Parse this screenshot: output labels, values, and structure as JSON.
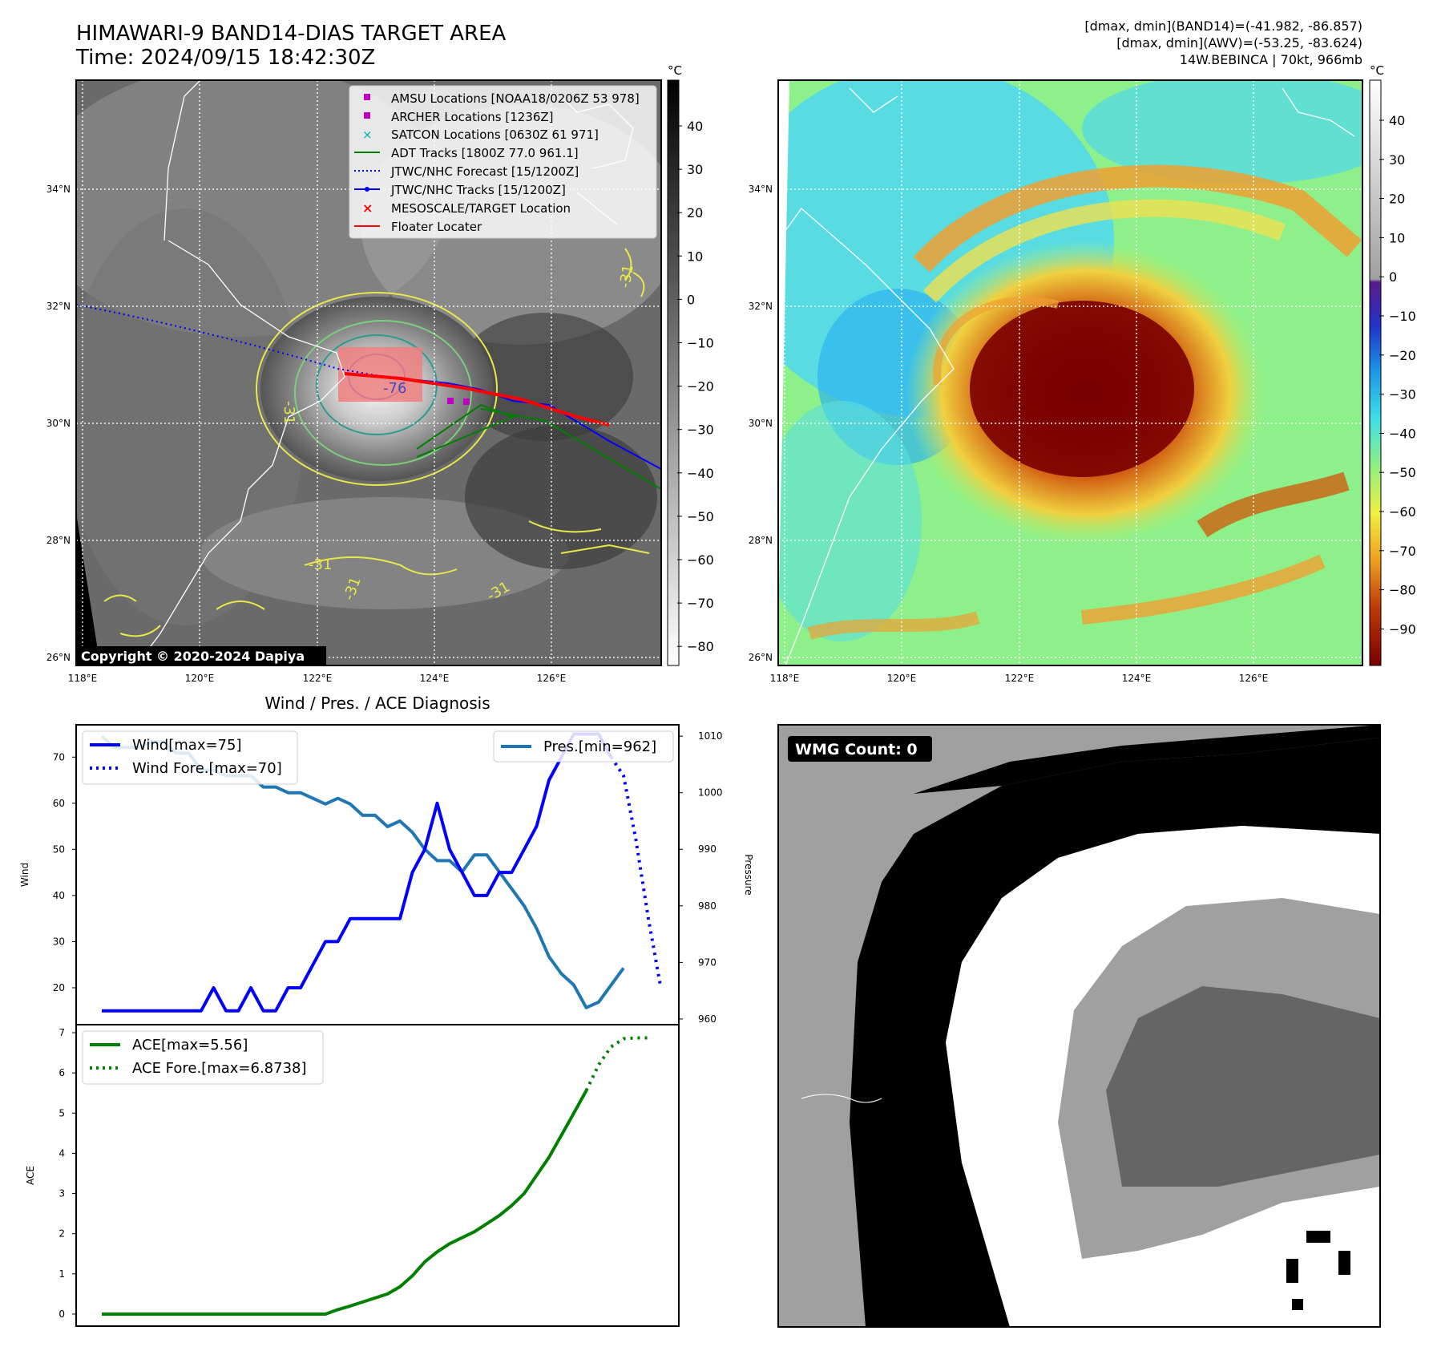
{
  "header": {
    "title": "HIMAWARI-9 BAND14-DIAS TARGET AREA",
    "time": "Time: 2024/09/15 18:42:30Z",
    "info_line1": "[dmax, dmin](BAND14)=(-41.982, -86.857)",
    "info_line2": "[dmax, dmin](AWV)=(-53.25, -83.624)",
    "info_line3": "14W.BEBINCA | 70kt, 966mb"
  },
  "map": {
    "lat_labels": [
      "34°N",
      "32°N",
      "30°N",
      "28°N",
      "26°N"
    ],
    "lon_labels": [
      "118°E",
      "120°E",
      "122°E",
      "124°E",
      "126°E"
    ],
    "copyright": "Copyright © 2020-2024 Dapiya",
    "contour_labels": [
      "-31",
      "-76",
      "-31",
      "-31",
      "-31",
      "-31"
    ],
    "legend": [
      {
        "label": "AMSU Locations [NOAA18/0206Z 53 978]",
        "color": "#c000c0",
        "marker": "square"
      },
      {
        "label": "ARCHER Locations [1236Z]",
        "color": "#c000c0",
        "marker": "square"
      },
      {
        "label": "SATCON Locations [0630Z 61 971]",
        "color": "#00b0b0",
        "marker": "x"
      },
      {
        "label": "ADT Tracks [1800Z 77.0 961.1]",
        "color": "#008000",
        "marker": "line"
      },
      {
        "label": "JTWC/NHC Forecast [15/1200Z]",
        "color": "#0000ff",
        "marker": "dotted"
      },
      {
        "label": "JTWC/NHC Tracks [15/1200Z]",
        "color": "#0000ff",
        "marker": "line-dot"
      },
      {
        "label": "MESOSCALE/TARGET Location",
        "color": "#ff0000",
        "marker": "x"
      },
      {
        "label": "Floater Locater",
        "color": "#ff0000",
        "marker": "line"
      }
    ],
    "colorbar_gray": {
      "unit": "°C",
      "ticks": [
        "40",
        "30",
        "20",
        "10",
        "0",
        "−10",
        "−20",
        "−30",
        "−40",
        "−50",
        "−60",
        "−70",
        "−80"
      ]
    },
    "colorbar_awv": {
      "unit": "°C",
      "ticks": [
        "40",
        "30",
        "20",
        "10",
        "0",
        "−10",
        "−20",
        "−30",
        "−40",
        "−50",
        "−60",
        "−70",
        "−80",
        "−90"
      ]
    }
  },
  "wmg": {
    "label": "WMG Count: 0"
  },
  "chart_data": [
    {
      "type": "line",
      "title": "Wind / Pres. / ACE Diagnosis",
      "ylabel": "Wind",
      "y2label": "Pressure",
      "ylim": [
        12,
        77
      ],
      "y2lim": [
        959,
        1012
      ],
      "yticks": [
        "70",
        "60",
        "50",
        "40",
        "30",
        "20"
      ],
      "y2ticks": [
        "1010",
        "1000",
        "990",
        "980",
        "970",
        "960"
      ],
      "x": [
        0,
        1,
        2,
        3,
        4,
        5,
        6,
        7,
        8,
        9,
        10,
        11,
        12,
        13,
        14,
        15,
        16,
        17,
        18,
        19,
        20,
        21,
        22,
        23,
        24,
        25,
        26,
        27,
        28,
        29,
        30,
        31,
        32,
        33,
        34,
        35,
        36,
        37,
        38,
        39,
        40,
        41,
        42,
        43,
        44
      ],
      "series": [
        {
          "name": "Wind[max=75]",
          "color": "#0000ff",
          "style": "solid",
          "x": [
            0,
            1,
            2,
            3,
            4,
            5,
            6,
            7,
            8,
            9,
            10,
            11,
            12,
            13,
            14,
            15,
            16,
            17,
            18,
            19,
            20,
            21,
            22,
            23,
            24,
            25,
            26,
            27,
            28,
            29,
            30,
            31,
            32,
            33,
            34,
            35,
            36,
            37,
            38,
            39,
            40,
            41
          ],
          "values": [
            15,
            15,
            15,
            15,
            15,
            15,
            15,
            15,
            15,
            20,
            15,
            15,
            20,
            15,
            15,
            20,
            20,
            25,
            30,
            30,
            35,
            35,
            35,
            35,
            35,
            45,
            50,
            60,
            50,
            45,
            40,
            40,
            45,
            45,
            50,
            55,
            65,
            70,
            75,
            75,
            75,
            70
          ]
        },
        {
          "name": "Wind Fore.[max=70]",
          "color": "#0000ff",
          "style": "dotted",
          "x": [
            41,
            42,
            43,
            44,
            45
          ],
          "values": [
            70,
            66,
            52,
            35,
            20
          ]
        },
        {
          "name": "Pres.[min=962]",
          "color": "#1f77b4",
          "style": "solid",
          "axis": "right",
          "x": [
            0,
            1,
            2,
            3,
            4,
            5,
            6,
            7,
            8,
            9,
            10,
            11,
            12,
            13,
            14,
            15,
            16,
            17,
            18,
            19,
            20,
            21,
            22,
            23,
            24,
            25,
            26,
            27,
            28,
            29,
            30,
            31,
            32,
            33,
            34,
            35,
            36,
            37,
            38,
            39,
            40,
            41,
            42
          ],
          "values": [
            1010,
            1008,
            1008,
            1008,
            1009,
            1009,
            1007,
            1007,
            1004,
            1004,
            1003,
            1003,
            1003,
            1001,
            1001,
            1000,
            1000,
            999,
            998,
            999,
            998,
            996,
            996,
            994,
            995,
            993,
            990,
            988,
            988,
            986,
            989,
            989,
            986,
            983,
            980,
            976,
            971,
            968,
            966,
            962,
            963,
            966,
            969
          ]
        }
      ]
    },
    {
      "type": "line",
      "ylabel": "ACE",
      "ylim": [
        -0.3,
        7.2
      ],
      "yticks": [
        "7",
        "6",
        "5",
        "4",
        "3",
        "2",
        "1",
        "0"
      ],
      "series": [
        {
          "name": "ACE[max=5.56]",
          "color": "#008000",
          "style": "solid",
          "x": [
            0,
            3,
            6,
            9,
            12,
            15,
            17,
            18,
            19,
            20,
            21,
            22,
            23,
            24,
            25,
            26,
            27,
            28,
            29,
            30,
            31,
            32,
            33,
            34,
            35,
            36,
            37,
            38,
            39
          ],
          "values": [
            0,
            0,
            0,
            0,
            0,
            0,
            0,
            0,
            0.11,
            0.2,
            0.3,
            0.4,
            0.5,
            0.68,
            0.95,
            1.3,
            1.55,
            1.75,
            1.9,
            2.05,
            2.25,
            2.45,
            2.7,
            3.0,
            3.45,
            3.9,
            4.45,
            5.0,
            5.56
          ]
        },
        {
          "name": "ACE Fore.[max=6.8738]",
          "color": "#008000",
          "style": "dotted",
          "x": [
            39,
            40,
            41,
            42,
            43,
            44
          ],
          "values": [
            5.56,
            6.2,
            6.65,
            6.85,
            6.87,
            6.87
          ]
        }
      ]
    }
  ]
}
